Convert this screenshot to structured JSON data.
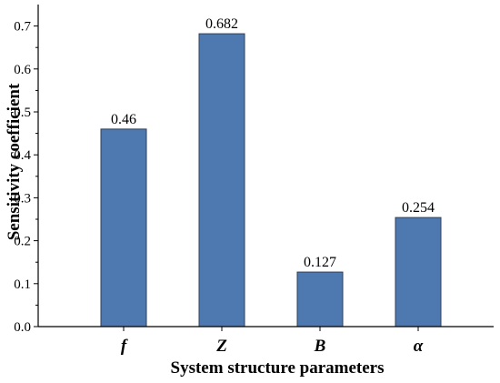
{
  "chart_data": {
    "type": "bar",
    "categories": [
      "f",
      "Z",
      "B",
      "α"
    ],
    "values": [
      0.46,
      0.682,
      0.127,
      0.254
    ],
    "data_labels": [
      "0.46",
      "0.682",
      "0.127",
      "0.254"
    ],
    "title": "",
    "xlabel": "System structure parameters",
    "ylabel": "Sensitivity coefficient",
    "ylim": [
      0,
      0.75
    ],
    "yticks": [
      0.0,
      0.1,
      0.2,
      0.3,
      0.4,
      0.5,
      0.6,
      0.7
    ],
    "ytick_labels": [
      "0.0",
      "0.1",
      "0.2",
      "0.3",
      "0.4",
      "0.5",
      "0.6",
      "0.7"
    ],
    "grid": false,
    "bar_color": "#4e79b0",
    "bar_edge_color": "#2d3f58"
  }
}
